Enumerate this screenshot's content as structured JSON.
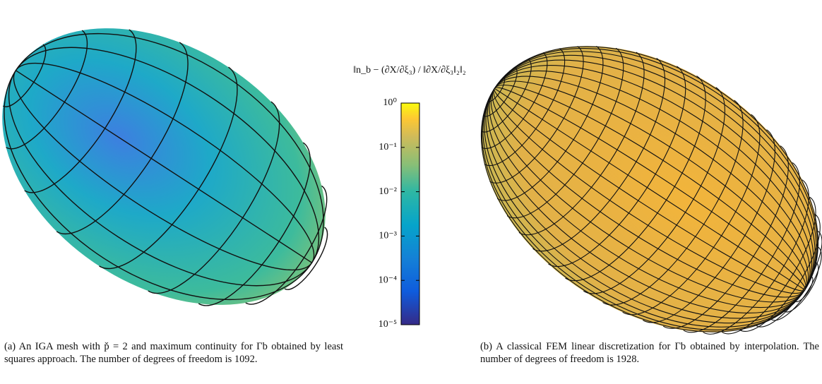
{
  "figure": {
    "colorbar": {
      "title": "‖n_b − (∂X/∂ξ₃) / ‖∂X/∂ξ₃‖₂‖₂",
      "scale": "log",
      "lim": [
        1e-05,
        1
      ],
      "ticks": [
        {
          "value": 1,
          "label": "10⁰"
        },
        {
          "value": 0.1,
          "label": "10⁻¹"
        },
        {
          "value": 0.01,
          "label": "10⁻²"
        },
        {
          "value": 0.001,
          "label": "10⁻³"
        },
        {
          "value": 0.0001,
          "label": "10⁻⁴"
        },
        {
          "value": 1e-05,
          "label": "10⁻⁵"
        }
      ]
    },
    "captions": [
      "(a) An IGA mesh with p̌ = 2 and maximum continuity for Γb obtained by least squares approach. The number of degrees of freedom is 1092.",
      "(b) A classical FEM linear discretization for Γb obtained by interpolation. The number of degrees of freedom is 1928."
    ]
  }
}
